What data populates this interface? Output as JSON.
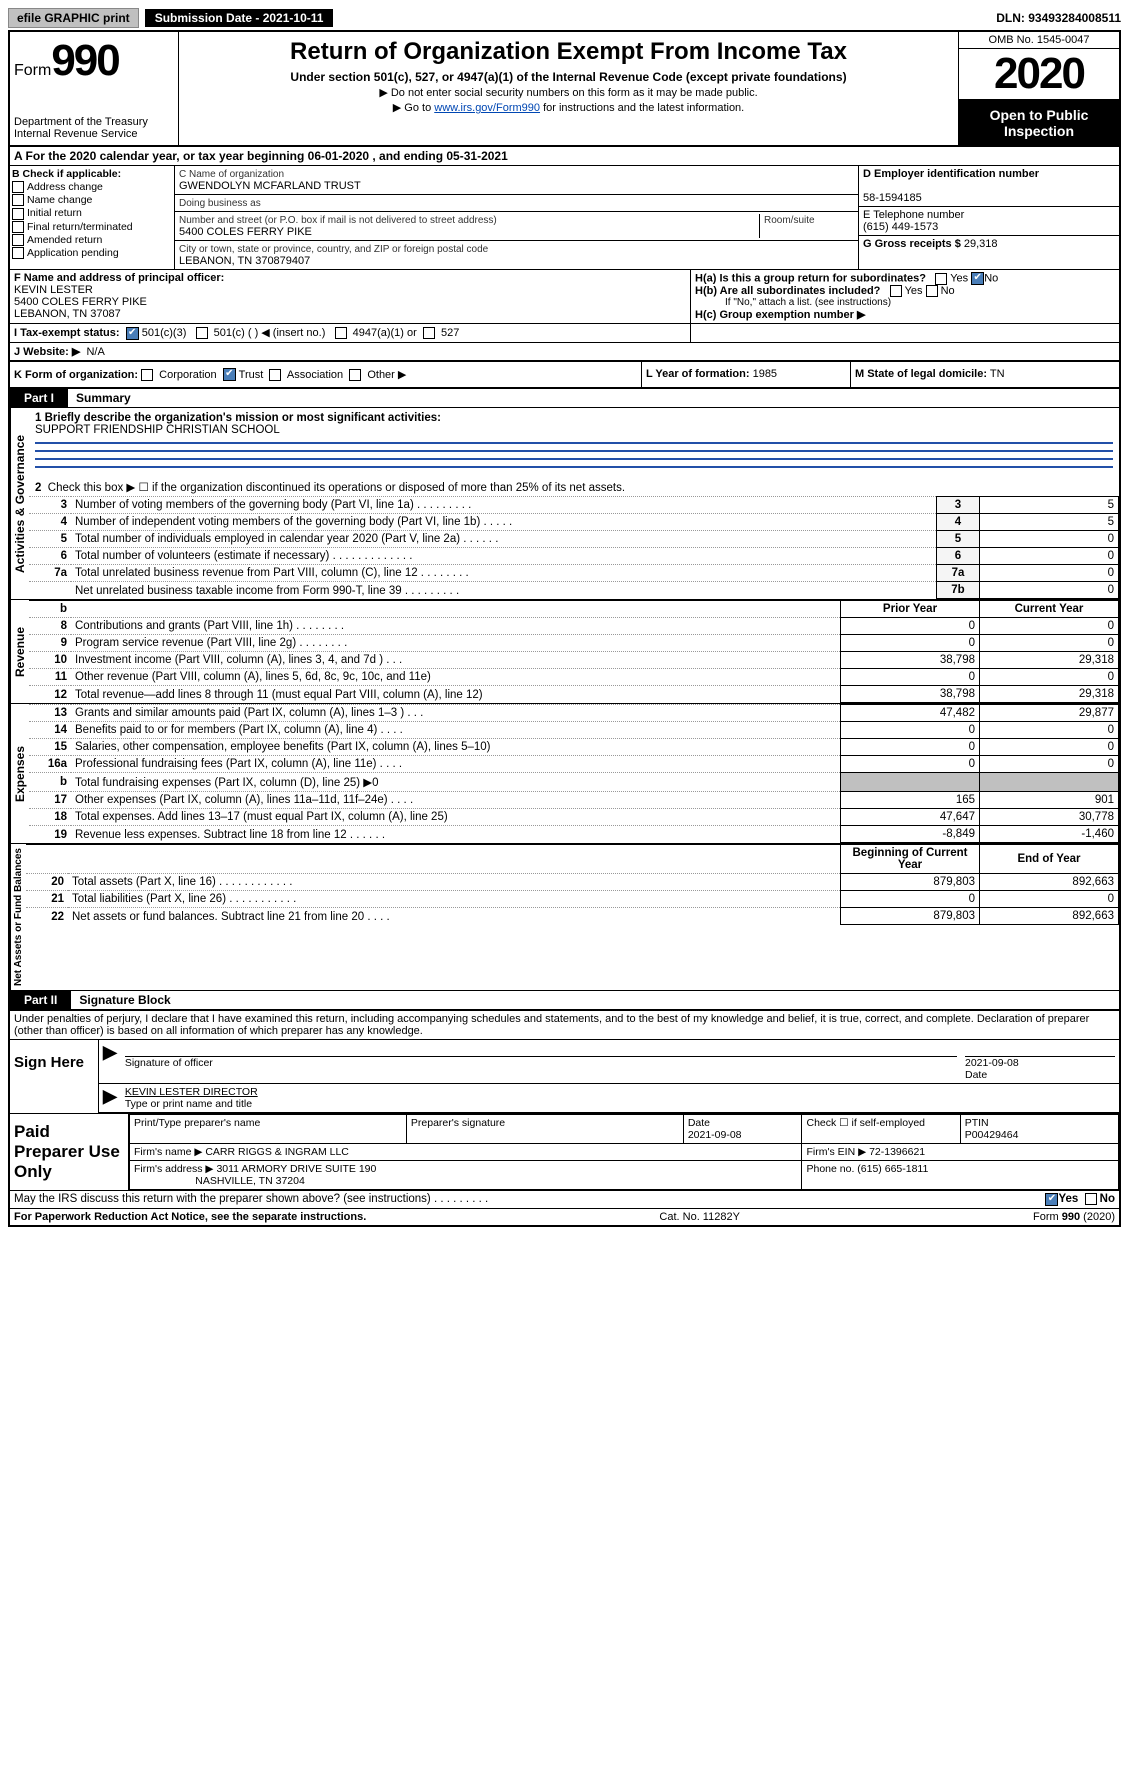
{
  "topbar": {
    "efile": "efile GRAPHIC print",
    "submission": "Submission Date - 2021-10-11",
    "dln": "DLN: 93493284008511"
  },
  "header": {
    "form_prefix": "Form",
    "form_num": "990",
    "dept": "Department of the Treasury\nInternal Revenue Service",
    "title": "Return of Organization Exempt From Income Tax",
    "subtitle": "Under section 501(c), 527, or 4947(a)(1) of the Internal Revenue Code (except private foundations)",
    "note1": "▶ Do not enter social security numbers on this form as it may be made public.",
    "note2_pre": "▶ Go to ",
    "note2_link": "www.irs.gov/Form990",
    "note2_post": " for instructions and the latest information.",
    "omb": "OMB No. 1545-0047",
    "year": "2020",
    "public": "Open to Public Inspection"
  },
  "rowA": "A   For the 2020 calendar year, or tax year beginning 06-01-2020    , and ending 05-31-2021",
  "B": {
    "hdr": "B Check if applicable:",
    "addr": "Address change",
    "name": "Name change",
    "init": "Initial return",
    "final": "Final return/terminated",
    "amend": "Amended return",
    "app": "Application pending"
  },
  "C": {
    "lbl_name": "C Name of organization",
    "org": "GWENDOLYN MCFARLAND TRUST",
    "dba": "Doing business as",
    "lbl_addr": "Number and street (or P.O. box if mail is not delivered to street address)",
    "room": "Room/suite",
    "addr": "5400 COLES FERRY PIKE",
    "lbl_city": "City or town, state or province, country, and ZIP or foreign postal code",
    "city": "LEBANON, TN  370879407"
  },
  "D": {
    "lbl": "D Employer identification number",
    "val": "58-1594185"
  },
  "E": {
    "lbl": "E Telephone number",
    "val": "(615) 449-1573"
  },
  "G": {
    "lbl": "G Gross receipts $",
    "val": "29,318"
  },
  "F": {
    "lbl": "F  Name and address of principal officer:",
    "name": "KEVIN LESTER",
    "addr": "5400 COLES FERRY PIKE",
    "city": "LEBANON, TN  37087"
  },
  "H": {
    "a": "H(a)  Is this a group return for subordinates?",
    "b": "H(b)  Are all subordinates included?",
    "note": "If \"No,\" attach a list. (see instructions)",
    "c": "H(c)  Group exemption number ▶",
    "yes": "Yes",
    "no": "No"
  },
  "I": {
    "lbl": "I     Tax-exempt status:",
    "o1": "501(c)(3)",
    "o2": "501(c) (  ) ◀ (insert no.)",
    "o3": "4947(a)(1) or",
    "o4": "527"
  },
  "J": {
    "lbl": "J    Website: ▶",
    "val": "N/A"
  },
  "K": {
    "lbl": "K Form of organization:",
    "corp": "Corporation",
    "trust": "Trust",
    "assoc": "Association",
    "other": "Other ▶"
  },
  "L": {
    "lbl": "L Year of formation:",
    "val": "1985"
  },
  "M": {
    "lbl": "M State of legal domicile:",
    "val": "TN"
  },
  "part1": {
    "tab": "Part I",
    "title": "Summary"
  },
  "mission": {
    "q": "1  Briefly describe the organization's mission or most significant activities:",
    "a": "SUPPORT FRIENDSHIP CHRISTIAN SCHOOL"
  },
  "gov": {
    "vlabel": "Activities & Governance",
    "l2": "Check this box ▶ ☐  if the organization discontinued its operations or disposed of more than 25% of its net assets.",
    "rows": [
      {
        "n": "3",
        "t": "Number of voting members of the governing body (Part VI, line 1a)  .   .   .   .   .   .   .   .   .",
        "b": "3",
        "v": "5"
      },
      {
        "n": "4",
        "t": "Number of independent voting members of the governing body (Part VI, line 1b)   .   .   .   .   .",
        "b": "4",
        "v": "5"
      },
      {
        "n": "5",
        "t": "Total number of individuals employed in calendar year 2020 (Part V, line 2a)   .   .   .   .   .   .",
        "b": "5",
        "v": "0"
      },
      {
        "n": "6",
        "t": "Total number of volunteers (estimate if necessary)   .   .   .   .   .   .   .   .   .   .   .   .   .",
        "b": "6",
        "v": "0"
      },
      {
        "n": "7a",
        "t": "Total unrelated business revenue from Part VIII, column (C), line 12   .   .   .   .   .   .   .   .",
        "b": "7a",
        "v": "0"
      },
      {
        "n": "",
        "t": "Net unrelated business taxable income from Form 990-T, line 39   .   .   .   .   .   .   .   .   .",
        "b": "7b",
        "v": "0"
      }
    ]
  },
  "rev": {
    "vlabel": "Revenue",
    "hdr_prior": "Prior Year",
    "hdr_curr": "Current Year",
    "rows": [
      {
        "n": "8",
        "t": "Contributions and grants (Part VIII, line 1h)   .   .   .   .   .   .   .   .",
        "p": "0",
        "c": "0"
      },
      {
        "n": "9",
        "t": "Program service revenue (Part VIII, line 2g)   .   .   .   .   .   .   .   .",
        "p": "0",
        "c": "0"
      },
      {
        "n": "10",
        "t": "Investment income (Part VIII, column (A), lines 3, 4, and 7d )   .   .   .",
        "p": "38,798",
        "c": "29,318"
      },
      {
        "n": "11",
        "t": "Other revenue (Part VIII, column (A), lines 5, 6d, 8c, 9c, 10c, and 11e)",
        "p": "0",
        "c": "0"
      },
      {
        "n": "12",
        "t": "Total revenue—add lines 8 through 11 (must equal Part VIII, column (A), line 12)",
        "p": "38,798",
        "c": "29,318"
      }
    ]
  },
  "exp": {
    "vlabel": "Expenses",
    "rows": [
      {
        "n": "13",
        "t": "Grants and similar amounts paid (Part IX, column (A), lines 1–3 )   .   .   .",
        "p": "47,482",
        "c": "29,877"
      },
      {
        "n": "14",
        "t": "Benefits paid to or for members (Part IX, column (A), line 4)   .   .   .   .",
        "p": "0",
        "c": "0"
      },
      {
        "n": "15",
        "t": "Salaries, other compensation, employee benefits (Part IX, column (A), lines 5–10)",
        "p": "0",
        "c": "0"
      },
      {
        "n": "16a",
        "t": "Professional fundraising fees (Part IX, column (A), line 11e)   .   .   .   .",
        "p": "0",
        "c": "0"
      },
      {
        "n": "b",
        "t": "Total fundraising expenses (Part IX, column (D), line 25) ▶0",
        "p": "",
        "c": "",
        "grey": true
      },
      {
        "n": "17",
        "t": "Other expenses (Part IX, column (A), lines 11a–11d, 11f–24e)   .   .   .   .",
        "p": "165",
        "c": "901"
      },
      {
        "n": "18",
        "t": "Total expenses. Add lines 13–17 (must equal Part IX, column (A), line 25)",
        "p": "47,647",
        "c": "30,778"
      },
      {
        "n": "19",
        "t": "Revenue less expenses. Subtract line 18 from line 12   .   .   .   .   .   .",
        "p": "-8,849",
        "c": "-1,460"
      }
    ]
  },
  "net": {
    "vlabel": "Net Assets or Fund Balances",
    "hdr_b": "Beginning of Current Year",
    "hdr_e": "End of Year",
    "rows": [
      {
        "n": "20",
        "t": "Total assets (Part X, line 16)   .   .   .   .   .   .   .   .   .   .   .   .",
        "p": "879,803",
        "c": "892,663"
      },
      {
        "n": "21",
        "t": "Total liabilities (Part X, line 26)   .   .   .   .   .   .   .   .   .   .   .",
        "p": "0",
        "c": "0"
      },
      {
        "n": "22",
        "t": "Net assets or fund balances. Subtract line 21 from line 20   .   .   .   .",
        "p": "879,803",
        "c": "892,663"
      }
    ]
  },
  "part2": {
    "tab": "Part II",
    "title": "Signature Block"
  },
  "perjury": "Under penalties of perjury, I declare that I have examined this return, including accompanying schedules and statements, and to the best of my knowledge and belief, it is true, correct, and complete. Declaration of preparer (other than officer) is based on all information of which preparer has any knowledge.",
  "sign": {
    "lbl": "Sign Here",
    "sig": "Signature of officer",
    "date": "2021-09-08",
    "date_lbl": "Date",
    "name": "KEVIN LESTER DIRECTOR",
    "name_lbl": "Type or print name and title"
  },
  "prep": {
    "lbl": "Paid Preparer Use Only",
    "h1": "Print/Type preparer's name",
    "h2": "Preparer's signature",
    "h3": "Date",
    "h4": "Check ☐ if self-employed",
    "h5": "PTIN",
    "date": "2021-09-08",
    "ptin": "P00429464",
    "firm_lbl": "Firm's name     ▶",
    "firm": "CARR RIGGS & INGRAM LLC",
    "ein_lbl": "Firm's EIN ▶",
    "ein": "72-1396621",
    "addr_lbl": "Firm's address ▶",
    "addr1": "3011 ARMORY DRIVE SUITE 190",
    "addr2": "NASHVILLE, TN  37204",
    "phone_lbl": "Phone no.",
    "phone": "(615) 665-1811"
  },
  "discuss": "May the IRS discuss this return with the preparer shown above? (see instructions)   .   .   .   .   .   .   .   .   .",
  "discuss_yes": "Yes",
  "discuss_no": "No",
  "foot": {
    "l": "For Paperwork Reduction Act Notice, see the separate instructions.",
    "m": "Cat. No. 11282Y",
    "r": "Form 990 (2020)"
  }
}
